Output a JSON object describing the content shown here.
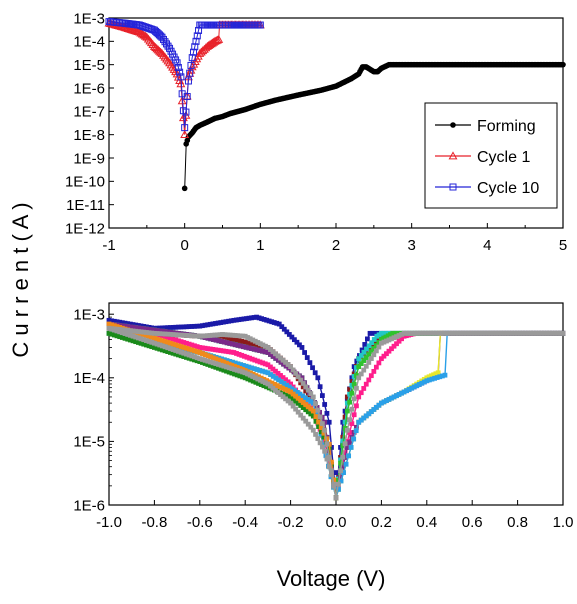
{
  "figure": {
    "shared_ylabel": "C u r r e n t  ( A )",
    "shared_xlabel": "Voltage (V)"
  },
  "chart_data": [
    {
      "type": "scatter",
      "y_scale": "log",
      "xlim": [
        -1,
        5
      ],
      "ylim": [
        1e-12,
        0.001
      ],
      "x_ticks": [
        -1,
        0,
        1,
        2,
        3,
        4,
        5
      ],
      "x_tick_labels": [
        "-1",
        "0",
        "1",
        "2",
        "3",
        "4",
        "5"
      ],
      "y_ticks": [
        0.001,
        0.0001,
        1e-05,
        1e-06,
        1e-07,
        1e-08,
        1e-09,
        1e-10,
        1e-11,
        1e-12
      ],
      "y_tick_labels": [
        "1E-3",
        "1E-4",
        "1E-5",
        "1E-6",
        "1E-7",
        "1E-8",
        "1E-9",
        "1E-10",
        "1E-11",
        "1E-12"
      ],
      "legend_position": "right",
      "series": [
        {
          "name": "Forming",
          "color": "#000000",
          "marker": "filled-circle",
          "x": [
            0,
            0.02,
            0.05,
            0.1,
            0.15,
            0.2,
            0.3,
            0.4,
            0.5,
            0.6,
            0.8,
            1.0,
            1.2,
            1.5,
            1.8,
            2.0,
            2.2,
            2.3,
            2.35,
            2.4,
            2.5,
            2.55,
            2.6,
            2.7,
            3.0,
            3.5,
            4.0,
            4.5,
            5.0
          ],
          "y": [
            5e-11,
            4e-09,
            8e-09,
            1.2e-08,
            2e-08,
            2.5e-08,
            3.5e-08,
            5e-08,
            6e-08,
            8e-08,
            1.2e-07,
            2e-07,
            3e-07,
            5e-07,
            8e-07,
            1.2e-06,
            2.5e-06,
            4e-06,
            8e-06,
            8e-06,
            5e-06,
            5e-06,
            7e-06,
            1e-05,
            1e-05,
            1e-05,
            1e-05,
            1e-05,
            1e-05
          ]
        },
        {
          "name": "Cycle 1",
          "color": "#e8222a",
          "marker": "open-triangle",
          "x": [
            -1,
            -0.8,
            -0.6,
            -0.5,
            -0.4,
            -0.3,
            -0.2,
            -0.1,
            -0.05,
            0,
            0.05,
            0.1,
            0.2,
            0.3,
            0.4,
            0.45,
            0.46,
            0.6,
            0.8,
            1.0
          ],
          "y": [
            0.0006,
            0.0004,
            0.00025,
            0.00015,
            6e-05,
            3e-05,
            1.2e-05,
            4e-06,
            1.5e-06,
            1e-08,
            3e-06,
            8e-06,
            3e-05,
            6e-05,
            0.0001,
            0.00012,
            0.0005,
            0.0005,
            0.0005,
            0.0005
          ]
        },
        {
          "name": "Cycle 10",
          "color": "#2424d8",
          "marker": "open-square",
          "x": [
            -1,
            -0.8,
            -0.6,
            -0.4,
            -0.3,
            -0.2,
            -0.1,
            -0.05,
            0,
            0.05,
            0.1,
            0.15,
            0.2,
            0.3,
            0.4,
            0.6,
            0.8,
            1.0
          ],
          "y": [
            0.0007,
            0.0006,
            0.0005,
            0.0003,
            0.00015,
            5e-05,
            1.2e-05,
            3e-06,
            2e-08,
            2e-06,
            2e-05,
            0.0001,
            0.0005,
            0.0005,
            0.0005,
            0.0005,
            0.0005,
            0.0005
          ]
        }
      ]
    },
    {
      "type": "scatter",
      "y_scale": "log",
      "xlim": [
        -1,
        1
      ],
      "ylim": [
        1e-06,
        0.0015
      ],
      "x_ticks": [
        -1.0,
        -0.8,
        -0.6,
        -0.4,
        -0.2,
        0.0,
        0.2,
        0.4,
        0.6,
        0.8,
        1.0
      ],
      "x_tick_labels": [
        "-1.0",
        "-0.8",
        "-0.6",
        "-0.4",
        "-0.2",
        "0.0",
        "0.2",
        "0.4",
        "0.6",
        "0.8",
        "1.0"
      ],
      "y_ticks": [
        0.001,
        0.0001,
        1e-05,
        1e-06
      ],
      "y_tick_labels": [
        "1E-3",
        "1E-4",
        "1E-5",
        "1E-6"
      ],
      "series": [
        {
          "color": "#1a1aa8",
          "x": [
            -1,
            -0.8,
            -0.6,
            -0.45,
            -0.35,
            -0.25,
            -0.15,
            -0.08,
            -0.03,
            0,
            0.03,
            0.08,
            0.15,
            0.3,
            0.5,
            0.8,
            1.0
          ],
          "y": [
            0.0008,
            0.0006,
            0.00065,
            0.0008,
            0.0009,
            0.0007,
            0.0003,
            0.0001,
            2e-05,
            1.3e-06,
            2e-05,
            0.00015,
            0.0005,
            0.0005,
            0.0005,
            0.0005,
            0.0005
          ]
        },
        {
          "color": "#ff1e8c",
          "x": [
            -1,
            -0.8,
            -0.6,
            -0.45,
            -0.3,
            -0.2,
            -0.1,
            -0.05,
            0,
            0.05,
            0.1,
            0.2,
            0.3,
            0.35,
            0.5,
            1.0
          ],
          "y": [
            0.0007,
            0.0005,
            0.0003,
            0.00025,
            0.00016,
            8e-05,
            3e-05,
            1e-05,
            1.3e-06,
            1e-05,
            5e-05,
            0.0002,
            0.00045,
            0.0005,
            0.0005,
            0.0005
          ]
        },
        {
          "color": "#8b1a1a",
          "x": [
            -1,
            -0.8,
            -0.6,
            -0.5,
            -0.45,
            -0.3,
            -0.2,
            -0.1,
            -0.03,
            0,
            0.05,
            0.1,
            0.2,
            0.3,
            1.0
          ],
          "y": [
            0.0007,
            0.0005,
            0.00045,
            0.00045,
            0.0004,
            0.0003,
            0.00015,
            4e-05,
            8e-06,
            1.3e-06,
            5e-05,
            0.0002,
            0.00045,
            0.0005,
            0.0005
          ]
        },
        {
          "color": "#22c7c7",
          "x": [
            -1,
            -0.6,
            -0.3,
            -0.15,
            -0.05,
            0,
            0.05,
            0.1,
            0.18,
            0.2,
            1.0
          ],
          "y": [
            0.0007,
            0.00045,
            0.00025,
            0.0001,
            2e-05,
            1.3e-06,
            4e-05,
            0.0002,
            0.00045,
            0.0005,
            0.0005
          ]
        },
        {
          "color": "#2ec22e",
          "x": [
            -1,
            -0.6,
            -0.3,
            -0.15,
            -0.05,
            0,
            0.05,
            0.1,
            0.2,
            0.25,
            1.0
          ],
          "y": [
            0.0007,
            0.00045,
            0.00025,
            0.0001,
            2e-05,
            1.3e-06,
            3e-05,
            0.00015,
            0.0004,
            0.0005,
            0.0005
          ]
        },
        {
          "color": "#7a2a8a",
          "x": [
            -1,
            -0.6,
            -0.3,
            -0.15,
            -0.05,
            0,
            0.05,
            0.1,
            0.2,
            0.3,
            0.4,
            0.45,
            0.46,
            0.6,
            0.8,
            1.0
          ],
          "y": [
            0.0007,
            0.00045,
            0.00025,
            0.0001,
            2e-05,
            1.3e-06,
            8e-06,
            2e-05,
            4e-05,
            6e-05,
            9e-05,
            0.00011,
            0.0005,
            0.0005,
            0.0005,
            0.0005
          ]
        },
        {
          "color": "#e8e82a",
          "x": [
            -1,
            -0.6,
            -0.3,
            -0.1,
            0,
            0.1,
            0.2,
            0.3,
            0.4,
            0.45,
            0.46
          ],
          "y": [
            0.0005,
            0.00025,
            0.00012,
            4e-05,
            1.3e-06,
            2e-05,
            4e-05,
            6e-05,
            0.0001,
            0.00012,
            0.0005
          ]
        },
        {
          "color": "#2aa0e8",
          "x": [
            -1,
            -0.6,
            -0.3,
            -0.1,
            0,
            0.1,
            0.2,
            0.3,
            0.4,
            0.48,
            0.49
          ],
          "y": [
            0.0005,
            0.00025,
            0.00012,
            4e-05,
            1.3e-06,
            2e-05,
            4e-05,
            6e-05,
            9e-05,
            0.00011,
            0.0005
          ]
        },
        {
          "color": "#1a8a1a",
          "x": [
            -1,
            -0.8,
            -0.6,
            -0.4,
            -0.2,
            -0.1,
            -0.03,
            0
          ],
          "y": [
            0.0005,
            0.0003,
            0.00018,
            0.0001,
            5e-05,
            2.5e-05,
            8e-06,
            1.3e-06
          ]
        },
        {
          "color": "#f08a1a",
          "x": [
            -1,
            -0.6,
            -0.4,
            -0.2,
            -0.1,
            -0.03,
            0
          ],
          "y": [
            0.0007,
            0.00025,
            0.00013,
            6e-05,
            3e-05,
            9e-06,
            1.3e-06
          ]
        },
        {
          "color": "#9a9a9a",
          "x": [
            -1,
            -0.8,
            -0.6,
            -0.5,
            -0.4,
            -0.3,
            -0.2,
            -0.1,
            -0.05,
            0,
            0.05,
            0.1,
            0.2,
            0.3,
            0.35,
            1.0
          ],
          "y": [
            0.0006,
            0.0005,
            0.00045,
            0.00048,
            0.00045,
            0.0003,
            0.00015,
            5e-05,
            1.5e-05,
            1.3e-06,
            1.5e-05,
            0.0001,
            0.00035,
            0.0005,
            0.0005,
            0.0005
          ]
        },
        {
          "color": "#9a9a9a",
          "x": [
            -1,
            -0.8,
            -0.6,
            -0.4,
            -0.3,
            -0.2,
            -0.1,
            -0.05,
            -0.02,
            0
          ],
          "y": [
            0.0006,
            0.00035,
            0.0002,
            0.00012,
            8e-05,
            4e-05,
            1.5e-05,
            7e-06,
            3e-06,
            1.3e-06
          ]
        }
      ]
    }
  ]
}
